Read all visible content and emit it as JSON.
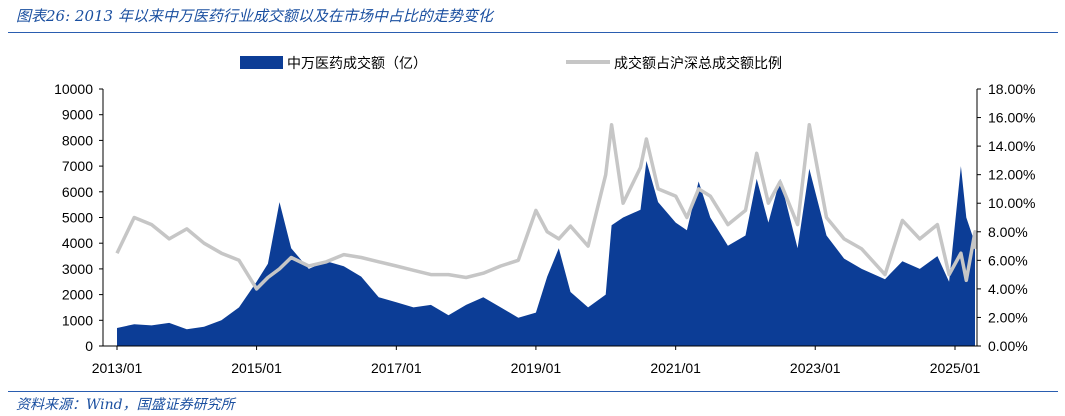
{
  "title": "图表26:  2013 年以来中万医药行业成交额以及在市场中占比的走势变化",
  "source": "资料来源：Wind，国盛证券研究所",
  "colors": {
    "bar": "#0c3d96",
    "line": "#c6c6c6",
    "title": "#1a4fa0"
  },
  "chart_data": {
    "type": "area",
    "legend_position": "top",
    "grid": false,
    "x_tick_labels": [
      "2013/01",
      "2015/01",
      "2017/01",
      "2019/01",
      "2021/01",
      "2023/01",
      "2025/01"
    ],
    "y_left_ticks": [
      "0",
      "1000",
      "2000",
      "3000",
      "4000",
      "5000",
      "6000",
      "7000",
      "8000",
      "9000",
      "10000"
    ],
    "y_right_ticks": [
      "0.00%",
      "2.00%",
      "4.00%",
      "6.00%",
      "8.00%",
      "10.00%",
      "12.00%",
      "14.00%",
      "16.00%",
      "18.00%"
    ],
    "ylim_left": [
      0,
      10000
    ],
    "ylim_right": [
      0,
      18
    ],
    "x": [
      "2013/01",
      "2013/04",
      "2013/07",
      "2013/10",
      "2014/01",
      "2014/04",
      "2014/07",
      "2014/10",
      "2015/01",
      "2015/03",
      "2015/05",
      "2015/07",
      "2015/10",
      "2016/01",
      "2016/04",
      "2016/07",
      "2016/10",
      "2017/01",
      "2017/04",
      "2017/07",
      "2017/10",
      "2018/01",
      "2018/04",
      "2018/07",
      "2018/10",
      "2019/01",
      "2019/03",
      "2019/05",
      "2019/07",
      "2019/10",
      "2020/01",
      "2020/02",
      "2020/04",
      "2020/07",
      "2020/08",
      "2020/10",
      "2021/01",
      "2021/03",
      "2021/05",
      "2021/07",
      "2021/10",
      "2022/01",
      "2022/03",
      "2022/05",
      "2022/07",
      "2022/10",
      "2022/12",
      "2023/03",
      "2023/06",
      "2023/09",
      "2024/01",
      "2024/04",
      "2024/07",
      "2024/10",
      "2024/12",
      "2025/02",
      "2025/03",
      "2025/05",
      "2025/07"
    ],
    "series": [
      {
        "name": "中万医药成交额（亿）",
        "axis": "left",
        "type": "area",
        "values": [
          700,
          850,
          800,
          900,
          650,
          750,
          1000,
          1500,
          2500,
          3200,
          5600,
          3800,
          3000,
          3300,
          3100,
          2700,
          1900,
          1700,
          1500,
          1600,
          1200,
          1600,
          1900,
          1500,
          1100,
          1300,
          2700,
          3800,
          2100,
          1500,
          2000,
          4700,
          5000,
          5300,
          7200,
          5600,
          4800,
          4500,
          6400,
          5000,
          3900,
          4300,
          6500,
          4800,
          6500,
          3800,
          6900,
          4300,
          3400,
          3000,
          2600,
          3300,
          3000,
          3500,
          2500,
          7000,
          5000,
          4000,
          4300
        ]
      },
      {
        "name": "成交额占沪深总成交额比例",
        "axis": "right",
        "type": "line",
        "values": [
          6.5,
          9.0,
          8.5,
          7.5,
          8.2,
          7.2,
          6.5,
          6.0,
          4.0,
          4.8,
          5.4,
          6.2,
          5.6,
          5.9,
          6.4,
          6.2,
          5.9,
          5.6,
          5.3,
          5.0,
          5.0,
          4.8,
          5.1,
          5.6,
          6.0,
          9.5,
          8.0,
          7.5,
          8.4,
          7.0,
          12.0,
          15.5,
          10.0,
          12.5,
          14.5,
          11.0,
          10.5,
          9.0,
          11.0,
          10.5,
          8.5,
          9.5,
          13.5,
          10.0,
          11.5,
          8.5,
          15.5,
          9.0,
          7.5,
          6.8,
          5.0,
          8.8,
          7.5,
          8.5,
          5.0,
          6.5,
          4.6,
          8.0,
          6.8
        ]
      }
    ]
  }
}
